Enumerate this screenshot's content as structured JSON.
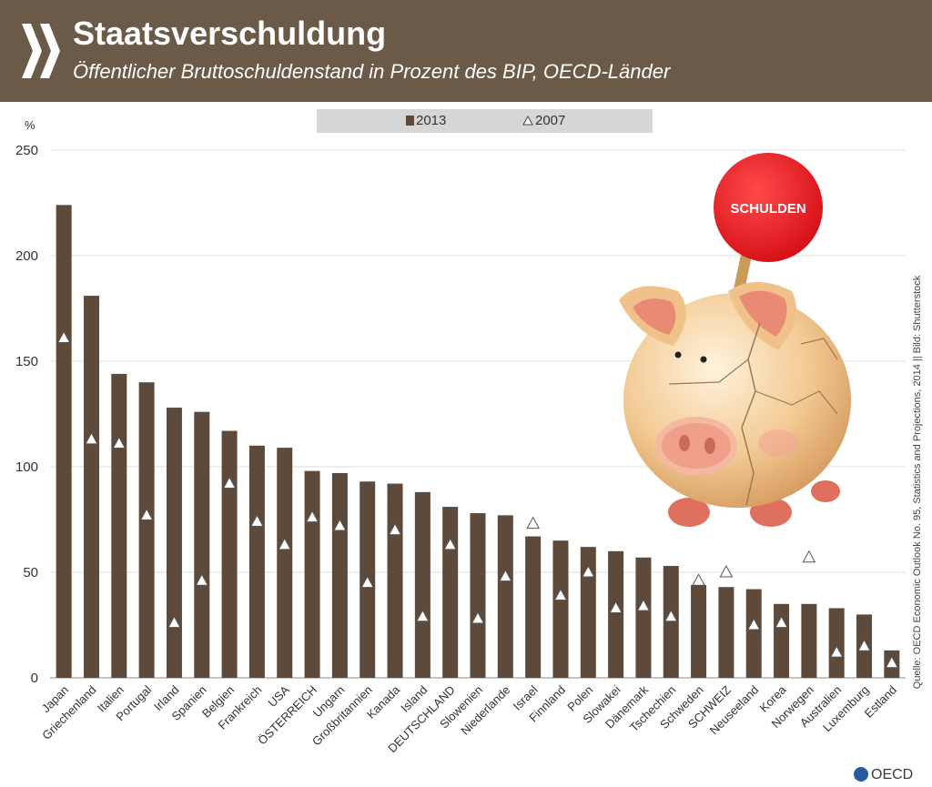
{
  "header": {
    "title": "Staatsverschuldung",
    "subtitle": "Öffentlicher Bruttoschuldenstand in Prozent des BIP, OECD-Länder"
  },
  "legend": {
    "bar_label": "2013",
    "marker_label": "2007"
  },
  "source_text": "Quelle: OECD Economic Outlook No. 95, Statistics and Projections, 2014 || Bild: Shutterstock",
  "logo_text": "OECD",
  "illustration": {
    "sign_text": "SCHULDEN"
  },
  "colors": {
    "header_bg": "#6b5a47",
    "bar": "#5e4a3a",
    "legend_bg": "#d6d6d6",
    "sign": "#e8191f"
  },
  "chart_data": {
    "type": "bar",
    "ylabel": "%",
    "ylim": [
      0,
      250
    ],
    "yticks": [
      0,
      50,
      100,
      150,
      200,
      250
    ],
    "categories": [
      "Japan",
      "Griechenland",
      "Italien",
      "Portugal",
      "Irland",
      "Spanien",
      "Belgien",
      "Frankreich",
      "USA",
      "ÖSTERREICH",
      "Ungarn",
      "Großbritannien",
      "Kanada",
      "Island",
      "DEUTSCHLAND",
      "Slowenien",
      "Niederlande",
      "Israel",
      "Finnland",
      "Polen",
      "Slowakei",
      "Dänemark",
      "Tschechien",
      "Schweden",
      "SCHWEIZ",
      "Neuseeland",
      "Korea",
      "Norwegen",
      "Australien",
      "Luxemburg",
      "Estland"
    ],
    "series": [
      {
        "name": "2013",
        "kind": "bar",
        "values": [
          224,
          181,
          144,
          140,
          128,
          126,
          117,
          110,
          109,
          98,
          97,
          93,
          92,
          88,
          81,
          78,
          77,
          67,
          65,
          62,
          60,
          57,
          53,
          44,
          43,
          42,
          35,
          35,
          33,
          30,
          13
        ]
      },
      {
        "name": "2007",
        "kind": "marker",
        "values": [
          161,
          113,
          111,
          77,
          26,
          46,
          92,
          74,
          63,
          76,
          72,
          45,
          70,
          29,
          63,
          28,
          48,
          73,
          39,
          50,
          33,
          34,
          29,
          46,
          50,
          25,
          26,
          57,
          12,
          15,
          7
        ]
      }
    ]
  }
}
